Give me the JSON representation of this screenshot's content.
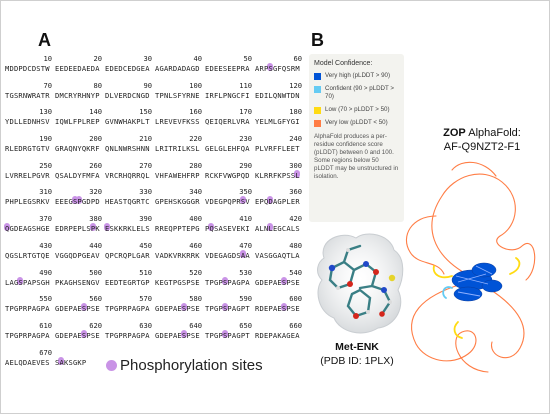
{
  "panels": {
    "a": "A",
    "b": "B"
  },
  "sequence": [
    {
      "nums": [
        "10",
        "20",
        "30",
        "40",
        "50",
        "60"
      ],
      "blocks": [
        "MDDPDCDSTW",
        "EEDEEDAEDA",
        "EDEDCEDGEA",
        "AGARDADAGD",
        "EDEESEEPRA",
        "ARPSGFQSRM"
      ]
    },
    {
      "nums": [
        "70",
        "80",
        "90",
        "100",
        "110",
        "120"
      ],
      "blocks": [
        "TGSRNWRATR",
        "DMCRYRHNYP",
        "DLVERDCNGD",
        "TPNLSFYRNE",
        "IRFLPNGCFI",
        "EDILQNWTDN"
      ]
    },
    {
      "nums": [
        "130",
        "140",
        "150",
        "160",
        "170",
        "180"
      ],
      "blocks": [
        "YDLLEDNHSV",
        "IQWLFPLREP",
        "GVNWHAKPLT",
        "LREVEVFKSS",
        "QEIQERLVRA",
        "YELMLGFYGI"
      ]
    },
    {
      "nums": [
        "190",
        "200",
        "210",
        "220",
        "230",
        "240"
      ],
      "blocks": [
        "RLEDRGTGTV",
        "GRAQNYQKRF",
        "QNLNWRSHNN",
        "LRITRILKSL",
        "GELGLEHFQA",
        "PLVRFFLEET"
      ]
    },
    {
      "nums": [
        "250",
        "260",
        "270",
        "280",
        "290",
        "300"
      ],
      "blocks": [
        "LVRRELPGVR",
        "QSALDYFMFA",
        "VRCRHQRRQL",
        "VHFAWEHFRP",
        "RCKFVWGPQD",
        "KLRRFKPSSL"
      ]
    },
    {
      "nums": [
        "310",
        "320",
        "330",
        "340",
        "350",
        "360"
      ],
      "blocks": [
        "PHPLEGSRKV",
        "EEEGSPGDPD",
        "HEASTQGRTC",
        "GPEHSKGGGR",
        "VDEGPQPRSV",
        "EPQDAGPLER"
      ]
    },
    {
      "nums": [
        "370",
        "380",
        "390",
        "400",
        "410",
        "420"
      ],
      "blocks": [
        "QGDEAGSHGE",
        "EDRPEPLSPK",
        "ESKKRKLELS",
        "RREQPPTEPG",
        "PQSASEVEKI",
        "ALNLEGCALS"
      ]
    },
    {
      "nums": [
        "430",
        "440",
        "450",
        "460",
        "470",
        "480"
      ],
      "blocks": [
        "QGSLRTGTQE",
        "VGGQDPGEAV",
        "QPCRQPLGAR",
        "VADKVRKRRK",
        "VDEGAGDSAA",
        "VASGGAQTLA"
      ]
    },
    {
      "nums": [
        "490",
        "500",
        "510",
        "520",
        "530",
        "540"
      ],
      "blocks": [
        "LAGSPAPSGH",
        "PKAGHSENGV",
        "EEDTEGRTGP",
        "KEGTPGSPSE",
        "TPGPSPAGPA",
        "GDEPAESPSE"
      ]
    },
    {
      "nums": [
        "550",
        "560",
        "570",
        "580",
        "590",
        "600"
      ],
      "blocks": [
        "TPGPRPAGPA",
        "GDEPAESPSE",
        "TPGPRPAGPA",
        "GDEPAESPSE",
        "TPGPSPAGPT",
        "RDEPAESPSE"
      ]
    },
    {
      "nums": [
        "610",
        "620",
        "630",
        "640",
        "650",
        "660"
      ],
      "blocks": [
        "TPGPRPAGPA",
        "GDEPAESPSE",
        "TPGPRPAGPA",
        "GDEPAESPSE",
        "TPGPSPAGPT",
        "RDEPAKAGEA"
      ]
    },
    {
      "nums": [
        "670"
      ],
      "blocks": [
        "AELQDAEVES",
        "SAKSGKP"
      ]
    }
  ],
  "legend": {
    "phospho_label": "Phosphorylation sites",
    "phospho_color": "#c993e6"
  },
  "confidence": {
    "title": "Model Confidence:",
    "items": [
      {
        "label": "Very high (pLDDT > 90)",
        "color": "#0053d6"
      },
      {
        "label": "Confident (90 > pLDDT > 70)",
        "color": "#65cbf3"
      },
      {
        "label": "Low (70 > pLDDT > 50)",
        "color": "#ffdb13"
      },
      {
        "label": "Very low (pLDDT < 50)",
        "color": "#ff7d45"
      }
    ],
    "note": "AlphaFold produces a per-residue confidence score (pLDDT) between 0 and 100. Some regions below 50 pLDDT may be unstructured in isolation."
  },
  "zop": {
    "bold": "ZOP",
    "rest": " AlphaFold:",
    "id": "AF-Q9NZT2-F1"
  },
  "met": {
    "name": "Met-ENK",
    "pdb": "(PDB ID: 1PLX)"
  }
}
